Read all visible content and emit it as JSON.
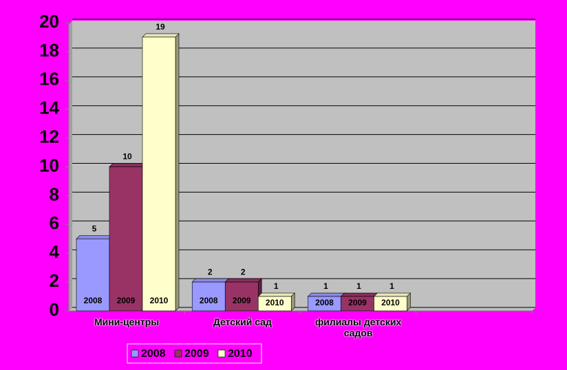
{
  "chart_data": {
    "type": "bar3d",
    "categories": [
      "Мини-центры",
      "Детский сад",
      "филиалы детских садов",
      null
    ],
    "series": [
      {
        "name": "2008",
        "color": "#9999ff",
        "values": [
          5,
          2,
          1,
          null
        ]
      },
      {
        "name": "2009",
        "color": "#993366",
        "values": [
          10,
          2,
          1,
          null
        ]
      },
      {
        "name": "2010",
        "color": "#ffffcc",
        "values": [
          19,
          1,
          1,
          null
        ]
      }
    ],
    "ylim": [
      0,
      20
    ],
    "yticks": [
      0,
      2,
      4,
      6,
      8,
      10,
      12,
      14,
      16,
      18,
      20
    ],
    "grid": true,
    "legend": "bottom"
  }
}
